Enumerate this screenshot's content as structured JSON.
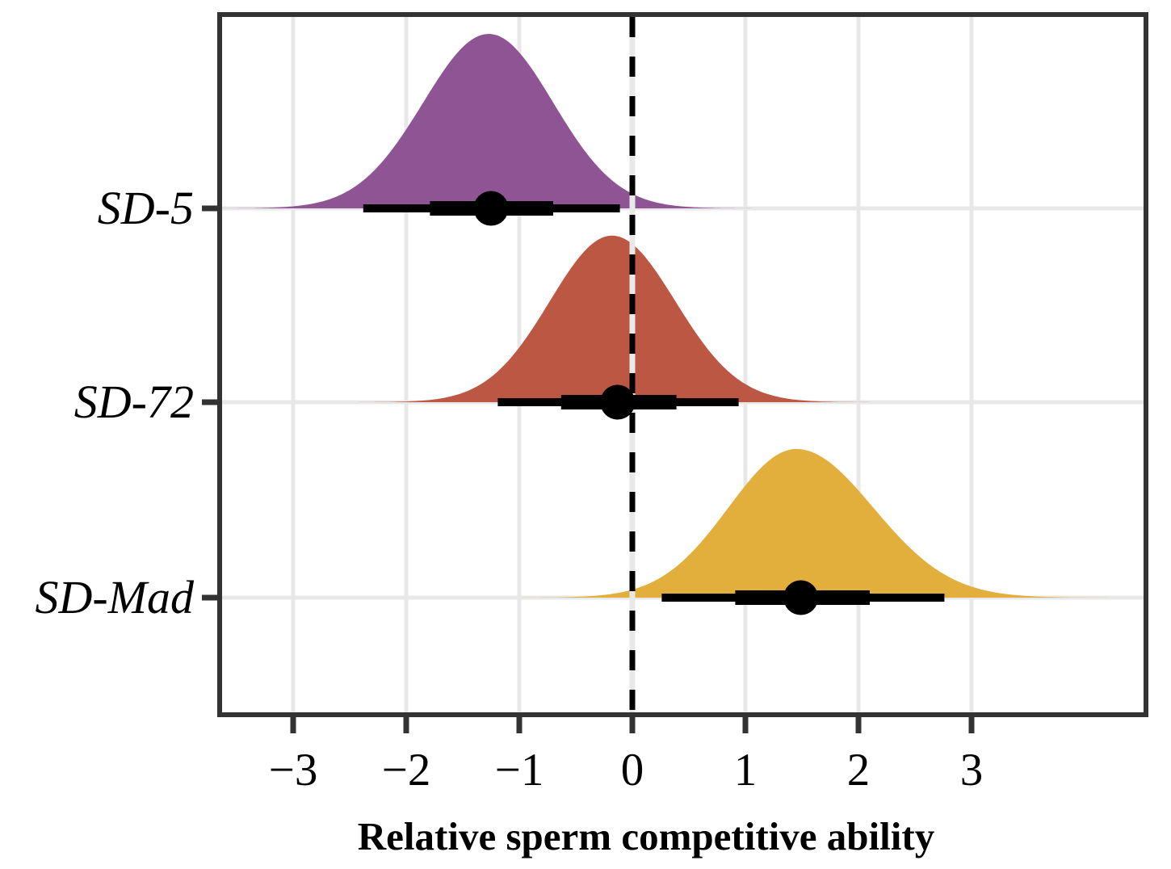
{
  "figure": {
    "background_color": "#ffffff",
    "panel_border_color": "#333333",
    "gridline_color": "#e8e8e8",
    "reference_line_color": "#000000",
    "interval_color": "#000000",
    "text_color": "#000000"
  },
  "chart_data": {
    "type": "area",
    "subtype": "halfeye-density-ridges",
    "title": "",
    "xlabel": "Relative sperm competitive ability",
    "ylabel": "",
    "x_ticks": [
      -3,
      -2,
      -1,
      0,
      1,
      2,
      3
    ],
    "x_tick_labels": [
      "−3",
      "−2",
      "−1",
      "0",
      "1",
      "2",
      "3"
    ],
    "xlim": [
      -3.65,
      4.54
    ],
    "grid": true,
    "legend": false,
    "reference_line_x": 0,
    "reference_line_style": "dashed",
    "rows": [
      {
        "label": "SD-5",
        "color": "#8F5494",
        "median": -1.25,
        "interval66": [
          -1.79,
          -0.7
        ],
        "interval95": [
          -2.38,
          -0.11
        ],
        "density_mode": -1.27,
        "density_sd_left": 0.58,
        "density_sd_right": 0.57,
        "peak_rel": 1.0
      },
      {
        "label": "SD-72",
        "color": "#BB5743",
        "median": -0.13,
        "interval66": [
          -0.63,
          0.39
        ],
        "interval95": [
          -1.19,
          0.94
        ],
        "density_mode": -0.18,
        "density_sd_left": 0.55,
        "density_sd_right": 0.56,
        "peak_rel": 0.955
      },
      {
        "label": "SD-Mad",
        "color": "#E2AE3C",
        "median": 1.49,
        "interval66": [
          0.91,
          2.1
        ],
        "interval95": [
          0.26,
          2.76
        ],
        "density_mode": 1.45,
        "density_sd_left": 0.6,
        "density_sd_right": 0.68,
        "peak_rel": 0.852
      }
    ]
  }
}
